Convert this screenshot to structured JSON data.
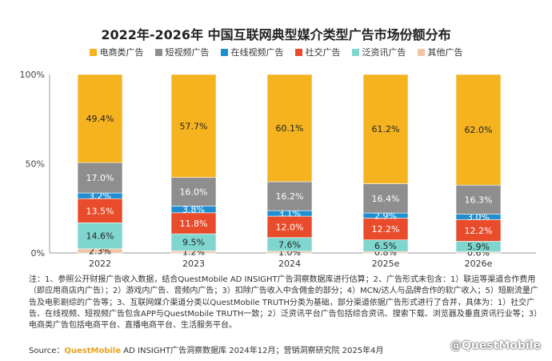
{
  "title": "2022年-2026年 中国互联网典型媒介类型广告市场份额分布",
  "colors": {
    "电商类广告": "#f5b41f",
    "短视频广告": "#8e8e8e",
    "在线视频广告": "#1f8fd1",
    "社交广告": "#e84c2b",
    "泛资讯广告": "#7fd6cf",
    "其他广告": "#f2c4a5"
  },
  "chart_data": {
    "type": "bar",
    "stacked": true,
    "categories": [
      "2022",
      "2023",
      "2024",
      "2025e",
      "2026e"
    ],
    "y_ticks": [
      "0%",
      "50%",
      "100%"
    ],
    "ylim": [
      0,
      100
    ],
    "legend_position": "top",
    "series": [
      {
        "name": "其他广告",
        "values": [
          2.3,
          1.2,
          1.0,
          0.8,
          0.6
        ],
        "labels": [
          "2.3%",
          "1.2%",
          "1.0%",
          "0.8%",
          "0.6%"
        ]
      },
      {
        "name": "泛资讯广告",
        "values": [
          14.6,
          9.5,
          7.6,
          6.5,
          5.9
        ],
        "labels": [
          "14.6%",
          "9.5%",
          "7.6%",
          "6.5%",
          "5.9%"
        ]
      },
      {
        "name": "社交广告",
        "values": [
          13.5,
          11.8,
          12.0,
          12.2,
          12.2
        ],
        "labels": [
          "13.5%",
          "11.8%",
          "12.0%",
          "12.2%",
          "12.2%"
        ]
      },
      {
        "name": "在线视频广告",
        "values": [
          3.2,
          3.8,
          3.1,
          2.9,
          3.0
        ],
        "labels": [
          "3.2%",
          "3.8%",
          "3.1%",
          "2.9%",
          "3.0%"
        ]
      },
      {
        "name": "短视频广告",
        "values": [
          17.0,
          16.0,
          16.2,
          16.4,
          16.3
        ],
        "labels": [
          "17.0%",
          "16.0%",
          "16.2%",
          "16.4%",
          "16.3%"
        ]
      },
      {
        "name": "电商类广告",
        "values": [
          49.4,
          57.7,
          60.1,
          61.2,
          62.0
        ],
        "labels": [
          "49.4%",
          "57.7%",
          "60.1%",
          "61.2%",
          "62.0%"
        ]
      }
    ]
  },
  "legend": [
    "电商类广告",
    "短视频广告",
    "在线视频广告",
    "社交广告",
    "泛资讯广告",
    "其他广告"
  ],
  "notes": "注：1、参照公开财报广告收入数据，结合QuestMobile AD INSIGHT广告洞察数据库进行估算；2、广告形式未包含：1）联运等渠道合作费用（即应用商店内广告）；2）游戏内广告、音频内广告；3）扣除广告收入中含佣金的部分；4）MCN/达人与品牌合作的软广收入；5）短剧流量广告及电影剧综的广告等；3、互联网媒介渠道分类以QuestMobile TRUTH分类为基础，部分渠道依据广告形式进行了合并，具体为：1）社交广告、在线视频、短视频广告包含APP与QuestMobile TRUTH一致；2）泛资讯平台广告包括综合资讯、搜索下载、浏览器及垂直资讯行业等；3）电商类广告包括电商平台、直播电商平台、生活服务平台。",
  "source": {
    "prefix": "Source：",
    "brand": "QuestMobile",
    "rest": " AD INSIGHT广告洞察数据库 2024年12月；营销洞察研究院 2025年4月"
  },
  "watermark": "@QuestMobile"
}
